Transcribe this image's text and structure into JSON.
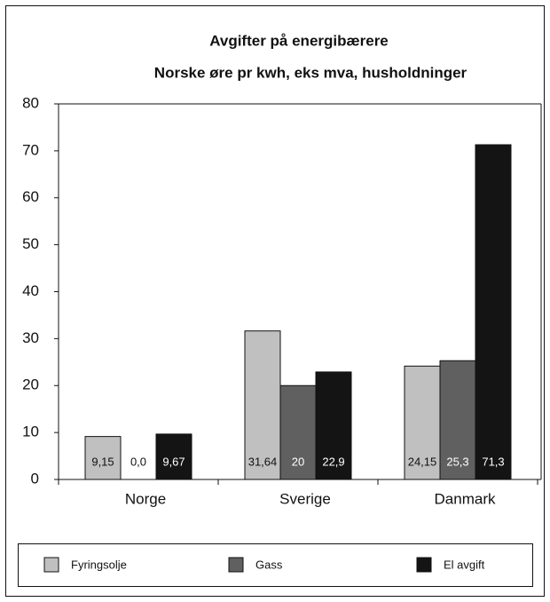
{
  "chart_data": {
    "type": "bar",
    "title": "Avgifter på energibærere",
    "subtitle": "Norske øre pr kwh, eks mva, husholdninger",
    "categories": [
      "Norge",
      "Sverige",
      "Danmark"
    ],
    "series": [
      {
        "name": "Fyringsolje",
        "color": "#c0c0c0",
        "values": [
          9.15,
          31.64,
          24.15
        ],
        "value_labels": [
          "9,15",
          "31,64",
          "24,15"
        ]
      },
      {
        "name": "Gass",
        "color": "#606060",
        "values": [
          0,
          20,
          25.3
        ],
        "value_labels": [
          "0,0",
          "20",
          "25,3"
        ]
      },
      {
        "name": "El avgift",
        "color": "#141414",
        "values": [
          9.67,
          22.9,
          71.3
        ],
        "value_labels": [
          "9,67",
          "22,9",
          "71,3"
        ]
      }
    ],
    "ylim": [
      0,
      80
    ],
    "yticks": [
      0,
      10,
      20,
      30,
      40,
      50,
      60,
      70,
      80
    ],
    "grid": false,
    "legend": "bottom"
  }
}
